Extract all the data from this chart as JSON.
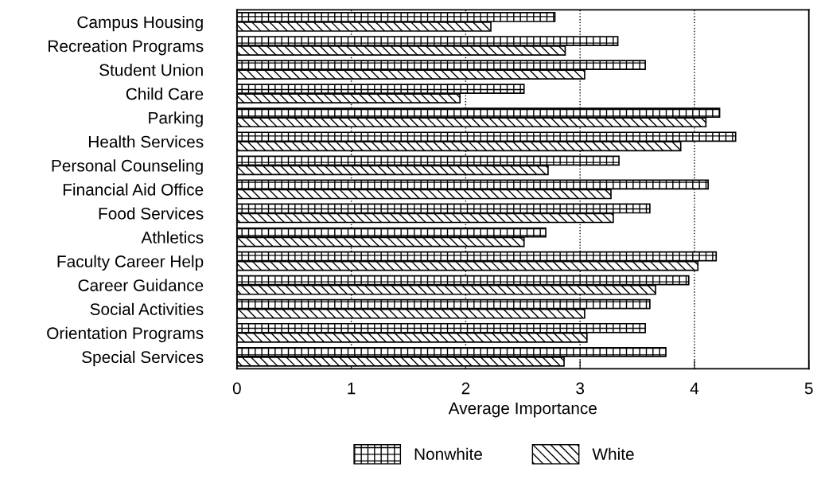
{
  "chart_data": {
    "type": "bar",
    "orientation": "horizontal",
    "xlabel": "Average Importance",
    "categories": [
      "Campus Housing",
      "Recreation Programs",
      "Student Union",
      "Child Care",
      "Parking",
      "Health Services",
      "Personal Counseling",
      "Financial Aid Office",
      "Food Services",
      "Athletics",
      "Faculty Career Help",
      "Career Guidance",
      "Social Activities",
      "Orientation Programs",
      "Special Services"
    ],
    "series": [
      {
        "name": "Nonwhite",
        "color": "#000000",
        "values": [
          2.78,
          3.33,
          3.57,
          2.51,
          4.22,
          4.36,
          3.34,
          4.12,
          3.61,
          2.7,
          4.19,
          3.95,
          3.61,
          3.57,
          3.75
        ]
      },
      {
        "name": "White",
        "color": "#000000",
        "values": [
          2.22,
          2.87,
          3.04,
          1.95,
          4.1,
          3.88,
          2.72,
          3.27,
          3.29,
          2.51,
          4.03,
          3.66,
          3.04,
          3.06,
          2.86
        ]
      }
    ],
    "xlim": [
      0,
      5
    ],
    "xticks": [
      0,
      1,
      2,
      3,
      4,
      5
    ],
    "grid": "x",
    "legend": "bottom"
  }
}
